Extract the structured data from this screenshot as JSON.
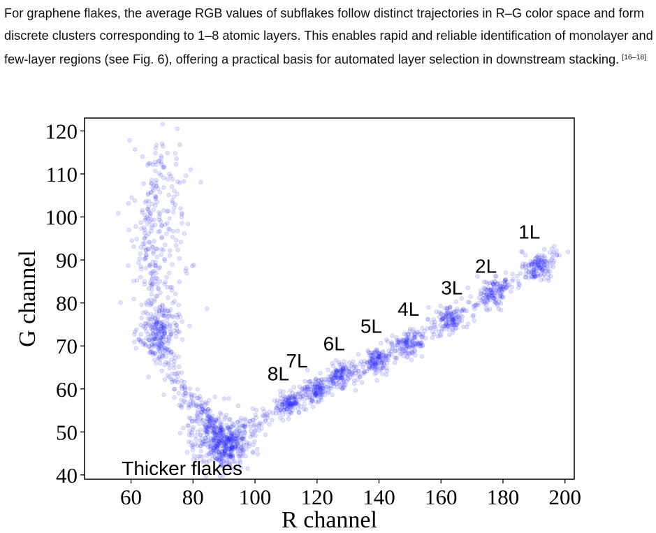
{
  "paragraph": {
    "text": "For graphene flakes, the average RGB values of subflakes follow distinct trajectories in R–G color space and form discrete clusters corresponding to 1–8 atomic layers. This enables rapid and reliable identification of monolayer and few-layer regions (see Fig. 6), offering a practical basis for automated layer selection in downstream stacking.",
    "citation": "[16–18]"
  },
  "chart_data": {
    "type": "scatter",
    "xlabel": "R channel",
    "ylabel": "G channel",
    "xlim": [
      45,
      203
    ],
    "ylim": [
      39,
      123
    ],
    "xticks": [
      60,
      80,
      100,
      120,
      140,
      160,
      180,
      200
    ],
    "yticks": [
      40,
      50,
      60,
      70,
      80,
      90,
      100,
      110,
      120
    ],
    "grid": false,
    "marker_color": "#1a1aff",
    "marker_alpha": 0.12,
    "annotations": [
      {
        "text": "1L",
        "x": 185,
        "y": 95
      },
      {
        "text": "2L",
        "x": 171,
        "y": 87
      },
      {
        "text": "3L",
        "x": 160,
        "y": 82
      },
      {
        "text": "4L",
        "x": 146,
        "y": 77
      },
      {
        "text": "5L",
        "x": 134,
        "y": 73
      },
      {
        "text": "6L",
        "x": 122,
        "y": 69
      },
      {
        "text": "7L",
        "x": 110,
        "y": 65
      },
      {
        "text": "8L",
        "x": 104,
        "y": 62
      },
      {
        "text": "Thicker flakes",
        "x": 57,
        "y": 40
      }
    ],
    "clusters": [
      {
        "name": "1L",
        "cx": 191,
        "cy": 88.5,
        "sx": 2.2,
        "sy": 1.6
      },
      {
        "name": "2L",
        "cx": 177,
        "cy": 82,
        "sx": 2.5,
        "sy": 1.7
      },
      {
        "name": "3L",
        "cx": 163,
        "cy": 76,
        "sx": 2.3,
        "sy": 1.6
      },
      {
        "name": "4L",
        "cx": 150,
        "cy": 70.5,
        "sx": 2.3,
        "sy": 1.4
      },
      {
        "name": "5L",
        "cx": 139,
        "cy": 66.5,
        "sx": 1.8,
        "sy": 1.3
      },
      {
        "name": "6L",
        "cx": 128,
        "cy": 63,
        "sx": 2.4,
        "sy": 1.5
      },
      {
        "name": "7L",
        "cx": 120,
        "cy": 60,
        "sx": 2.3,
        "sy": 1.4
      },
      {
        "name": "8L",
        "cx": 111,
        "cy": 57,
        "sx": 2,
        "sy": 1.3
      },
      {
        "name": "thick",
        "cx": 86,
        "cy": 49,
        "sx": 4,
        "sy": 3.5
      },
      {
        "name": "thick",
        "cx": 92,
        "cy": 46.5,
        "sx": 3,
        "sy": 2.5
      },
      {
        "name": "upper",
        "cx": 70,
        "cy": 95,
        "sx": 5,
        "sy": 13
      },
      {
        "name": "upper",
        "cx": 69,
        "cy": 73,
        "sx": 3,
        "sy": 3
      }
    ],
    "trajectory": [
      [
        200,
        92
      ],
      [
        186,
        87
      ],
      [
        176,
        82
      ],
      [
        162,
        76
      ],
      [
        150,
        71
      ],
      [
        140,
        67
      ],
      [
        128,
        63
      ],
      [
        118,
        59
      ],
      [
        108,
        55
      ],
      [
        98,
        51
      ],
      [
        90,
        47
      ],
      [
        86,
        52
      ],
      [
        82,
        56
      ],
      [
        76,
        60
      ],
      [
        70,
        68
      ],
      [
        66,
        85
      ],
      [
        65,
        100
      ],
      [
        70,
        115
      ]
    ]
  }
}
